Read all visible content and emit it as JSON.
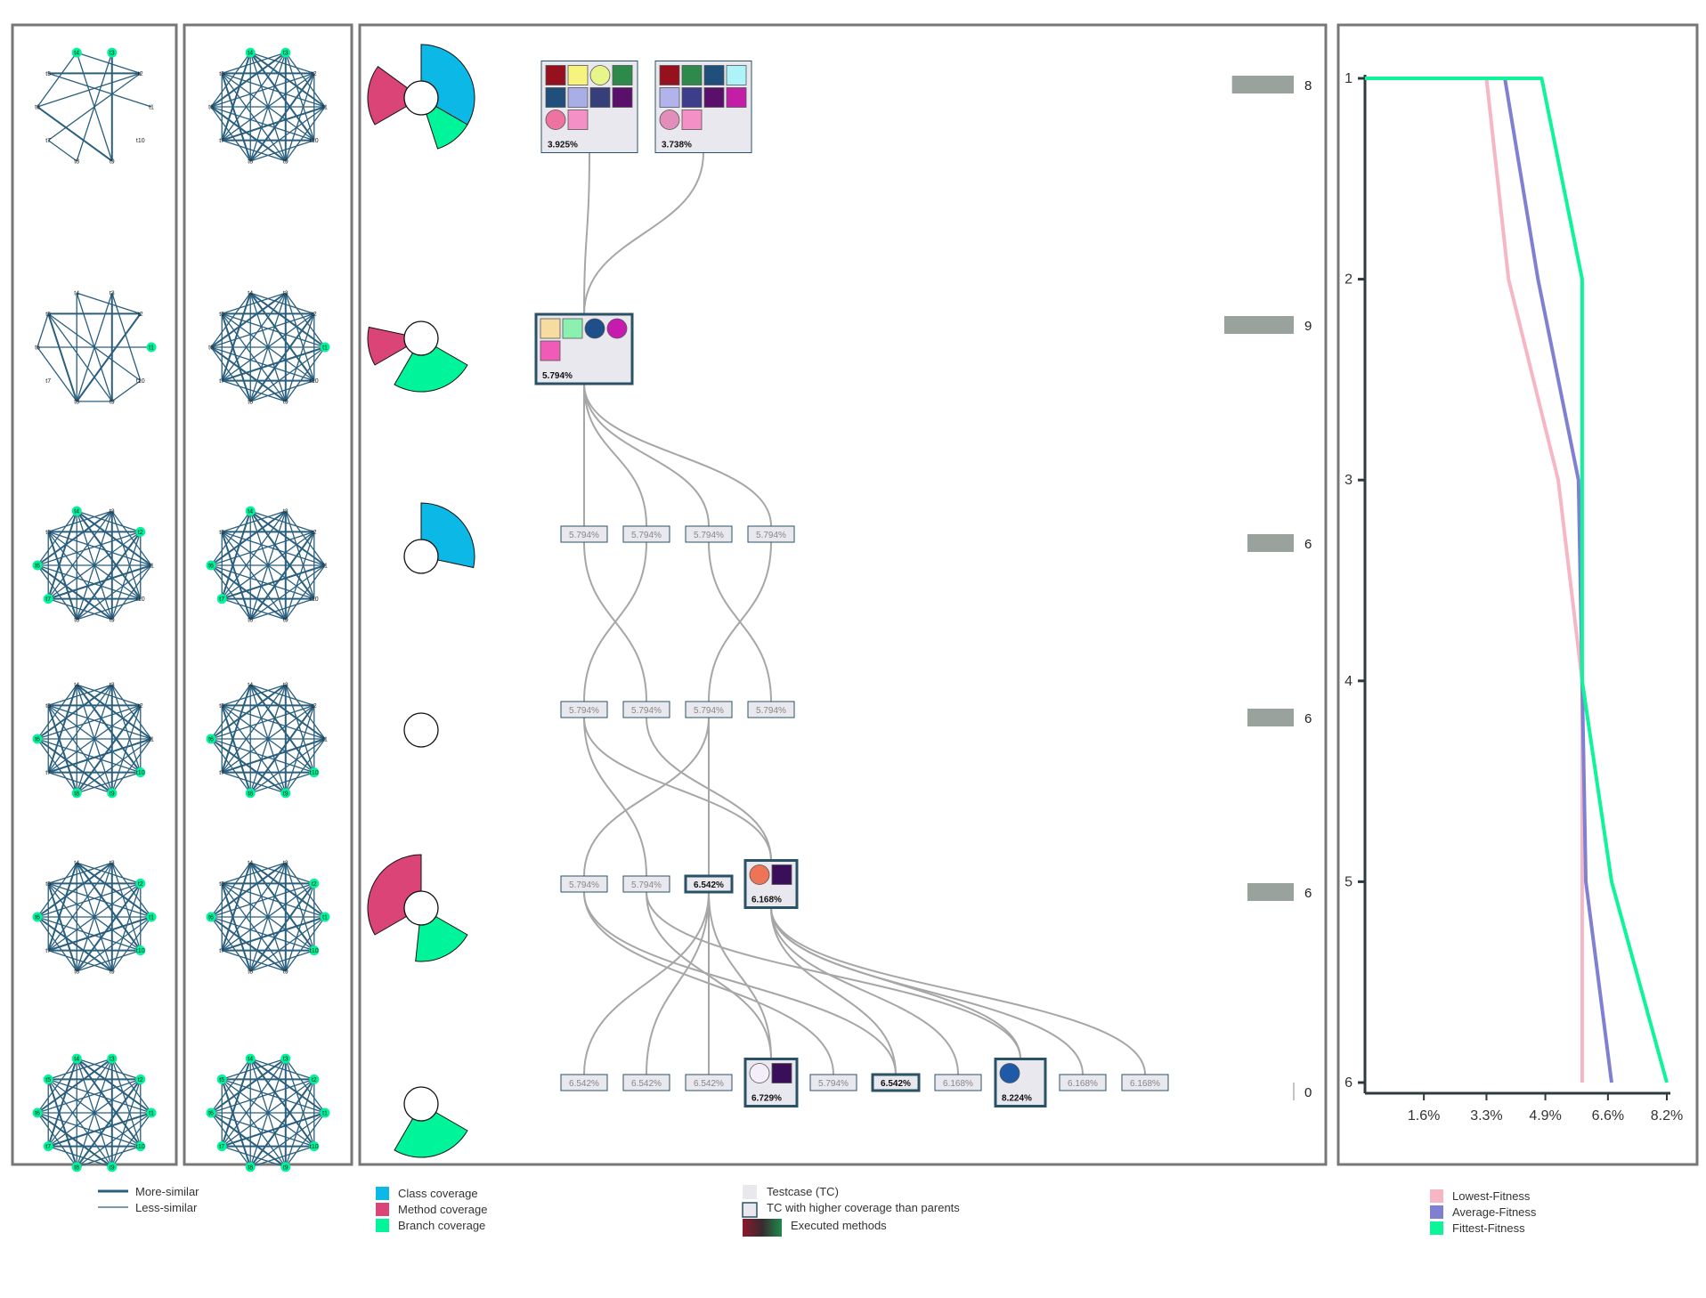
{
  "colors": {
    "network_edge": "#2a5f7e",
    "node_highlight": "#00f59a",
    "class_coverage": "#0bb8e6",
    "method_coverage": "#db4476",
    "branch_coverage": "#00f59a",
    "testcase_fill": "#e8e8ee",
    "testcase_border": "#2a5266",
    "link": "#a6a6a6",
    "count_bar": "#9aa29e",
    "panel_border": "#777777",
    "lowest_fitness": "#f7b6c6",
    "average_fitness": "#8080d3",
    "fittest_fitness": "#0df598"
  },
  "node_labels": [
    "t1",
    "t2",
    "t3",
    "t4",
    "t5",
    "t6",
    "t7",
    "t8",
    "t9",
    "t10"
  ],
  "networks": {
    "left": [
      {
        "highlight": [
          "t3",
          "t4"
        ],
        "edges": [
          [
            7,
            8
          ],
          [
            9,
            6
          ],
          [
            9,
            3
          ],
          [
            8,
            3
          ],
          [
            9,
            4
          ],
          [
            7,
            2
          ],
          [
            6,
            4
          ],
          [
            5,
            2
          ],
          [
            5,
            1
          ],
          [
            4,
            2
          ],
          [
            6,
            2
          ]
        ]
      },
      {
        "highlight": [
          "t1"
        ],
        "edges": [
          [
            8,
            9
          ],
          [
            8,
            5
          ],
          [
            8,
            4
          ],
          [
            8,
            3
          ],
          [
            8,
            2
          ],
          [
            9,
            10
          ],
          [
            9,
            5
          ],
          [
            9,
            4
          ],
          [
            9,
            3
          ],
          [
            10,
            5
          ],
          [
            10,
            3
          ],
          [
            6,
            1
          ],
          [
            6,
            5
          ],
          [
            5,
            2
          ],
          [
            4,
            2
          ],
          [
            6,
            8
          ]
        ]
      },
      {
        "highlight": [
          "t2",
          "t4",
          "t6",
          "t7"
        ],
        "edges": "all"
      },
      {
        "highlight": [
          "t6",
          "t8",
          "t9",
          "t10"
        ],
        "edges": "all"
      },
      {
        "highlight": [
          "t1",
          "t2",
          "t6",
          "t10"
        ],
        "edges": "all"
      },
      {
        "highlight": [
          "t1",
          "t2",
          "t3",
          "t4",
          "t5",
          "t6",
          "t7",
          "t8",
          "t9",
          "t10"
        ],
        "edges": "all"
      }
    ],
    "right": [
      {
        "highlight": [
          "t3",
          "t4"
        ],
        "edges": "all"
      },
      {
        "highlight": [
          "t1"
        ],
        "edges": "all"
      },
      {
        "highlight": [
          "t4",
          "t6",
          "t7"
        ],
        "edges": "all"
      },
      {
        "highlight": [
          "t6",
          "t8",
          "t9",
          "t10"
        ],
        "edges": "all"
      },
      {
        "highlight": [
          "t1",
          "t2",
          "t6",
          "t10"
        ],
        "edges": "all"
      },
      {
        "highlight": [
          "t1",
          "t2",
          "t3",
          "t4",
          "t5",
          "t6",
          "t7",
          "t8",
          "t9",
          "t10"
        ],
        "edges": "all"
      }
    ]
  },
  "coverage_glyphs": [
    {
      "class": 1.0,
      "method": 0.55,
      "branch": 0.35
    },
    {
      "class": 0.0,
      "method": 0.35,
      "branch": 0.75
    },
    {
      "class": 0.85,
      "method": 0.0,
      "branch": 0.0
    },
    {
      "class": 0.0,
      "method": 0.0,
      "branch": 0.0
    },
    {
      "class": 0.0,
      "method": 1.0,
      "branch": 0.55
    },
    {
      "class": 0.0,
      "method": 0.0,
      "branch": 0.75
    }
  ],
  "generations": [
    {
      "count": 8,
      "count_label": "8",
      "testcases": [
        {
          "label": "3.925%",
          "big": true,
          "parents": [],
          "methods": [
            [
              "sq",
              "#96101e"
            ],
            [
              "sq",
              "#f6f37f"
            ],
            [
              "ci",
              "#e6f68a"
            ],
            [
              "sq",
              "#2e8a4b"
            ],
            [
              "sq",
              "#1f4f7a"
            ],
            [
              "sq",
              "#a9aee6"
            ],
            [
              "sq",
              "#363f7a"
            ],
            [
              "sq",
              "#5a0f6a"
            ],
            [
              "ci",
              "#ef73a0"
            ],
            [
              "sq",
              "#f590c6"
            ]
          ]
        },
        {
          "label": "3.738%",
          "big": true,
          "parents": [],
          "methods": [
            [
              "sq",
              "#96101e"
            ],
            [
              "sq",
              "#2e8a4b"
            ],
            [
              "sq",
              "#1f4f7a"
            ],
            [
              "sq",
              "#aef3f7"
            ],
            [
              "sq",
              "#b1b3ea"
            ],
            [
              "sq",
              "#3d3d8c"
            ],
            [
              "sq",
              "#5a0f6a"
            ],
            [
              "sq",
              "#c21ea6"
            ],
            [
              "ci",
              "#e38dbb"
            ],
            [
              "sq",
              "#f590c6"
            ]
          ]
        }
      ]
    },
    {
      "count": 9,
      "count_label": "9",
      "testcases": [
        {
          "label": "5.794%",
          "big": true,
          "highlight": true,
          "parents": [
            0,
            1
          ],
          "methods": [
            [
              "sq",
              "#f6dca0"
            ],
            [
              "sq",
              "#8cf0b0"
            ],
            [
              "ci",
              "#1f4f8a"
            ],
            [
              "ci",
              "#c71bb0"
            ],
            [
              "sq",
              "#f05bb8"
            ]
          ]
        }
      ]
    },
    {
      "count": 6,
      "count_label": "6",
      "testcases": [
        {
          "label": "5.794%",
          "parents": [
            0
          ]
        },
        {
          "label": "5.794%",
          "parents": [
            0
          ]
        },
        {
          "label": "5.794%",
          "parents": [
            0
          ]
        },
        {
          "label": "5.794%",
          "parents": [
            0
          ]
        }
      ]
    },
    {
      "count": 6,
      "count_label": "6",
      "testcases": [
        {
          "label": "5.794%",
          "parents": [
            1
          ]
        },
        {
          "label": "5.794%",
          "parents": [
            0
          ]
        },
        {
          "label": "5.794%",
          "parents": [
            3
          ]
        },
        {
          "label": "5.794%",
          "parents": [
            2
          ]
        }
      ]
    },
    {
      "count": 6,
      "count_label": "6",
      "testcases": [
        {
          "label": "5.794%",
          "parents": [
            2
          ]
        },
        {
          "label": "5.794%",
          "parents": [
            0
          ]
        },
        {
          "label": "6.542%",
          "highlight": true,
          "parents": [
            2
          ]
        },
        {
          "label": "6.168%",
          "big": true,
          "highlight": true,
          "parents": [
            1,
            0
          ],
          "methods": [
            [
              "ci",
              "#ee7357"
            ],
            [
              "sq",
              "#3a0f5a"
            ]
          ]
        }
      ]
    },
    {
      "count": 0,
      "count_label": "0",
      "testcases": [
        {
          "label": "6.542%",
          "parents": [
            2
          ]
        },
        {
          "label": "6.542%",
          "parents": [
            2
          ]
        },
        {
          "label": "6.542%",
          "parents": [
            2
          ]
        },
        {
          "label": "6.729%",
          "big": true,
          "highlight": true,
          "parents": [
            1,
            2
          ],
          "methods": [
            [
              "ci",
              "#f4eefa"
            ],
            [
              "sq",
              "#3a0f5a"
            ]
          ]
        },
        {
          "label": "5.794%",
          "parents": [
            0
          ]
        },
        {
          "label": "6.542%",
          "highlight": true,
          "parents": [
            0,
            3
          ]
        },
        {
          "label": "6.168%",
          "parents": [
            3
          ]
        },
        {
          "label": "8.224%",
          "big": true,
          "highlight": true,
          "parents": [
            1,
            3
          ],
          "methods": [
            [
              "ci",
              "#1f5aa8"
            ]
          ]
        },
        {
          "label": "6.168%",
          "parents": [
            3
          ]
        },
        {
          "label": "6.168%",
          "parents": [
            3
          ]
        }
      ]
    }
  ],
  "chart_data": {
    "type": "line",
    "x_ticks": [
      "1.6%",
      "3.3%",
      "4.9%",
      "6.6%",
      "8.2%"
    ],
    "y_ticks": [
      "1",
      "2",
      "3",
      "4",
      "5",
      "6"
    ],
    "xlim": [
      0,
      8.2
    ],
    "ylim": [
      1,
      6
    ],
    "series": [
      {
        "name": "Lowest-Fitness",
        "x": [
          3.3,
          3.9,
          5.25,
          5.9,
          5.9,
          5.9
        ],
        "y": [
          1,
          2,
          3,
          4,
          5,
          6
        ]
      },
      {
        "name": "Average-Fitness",
        "x": [
          3.8,
          4.7,
          5.8,
          5.9,
          6.0,
          6.7
        ],
        "y": [
          1,
          2,
          3,
          4,
          5,
          6
        ]
      },
      {
        "name": "Fittest-Fitness",
        "x": [
          4.8,
          5.9,
          5.9,
          5.9,
          6.7,
          8.2
        ],
        "y": [
          1,
          2,
          3,
          4,
          5,
          6
        ]
      }
    ]
  },
  "legends": {
    "network": [
      "More-similar",
      "Less-similar"
    ],
    "coverage": [
      "Class coverage",
      "Method coverage",
      "Branch coverage"
    ],
    "testcase": [
      "Testcase (TC)",
      "TC with higher coverage than parents",
      "Executed methods"
    ],
    "fitness": [
      "Lowest-Fitness",
      "Average-Fitness",
      "Fittest-Fitness"
    ]
  }
}
